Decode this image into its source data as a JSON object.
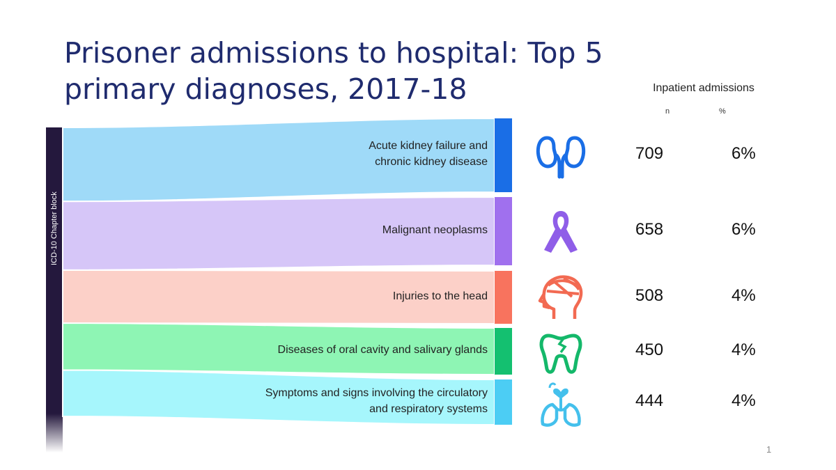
{
  "title": "Prisoner admissions to hospital: Top 5 primary diagnoses, 2017-18",
  "header": {
    "group": "Inpatient admissions",
    "n_label": "n",
    "pct_label": "%"
  },
  "sidebar_label": "ICD-10 Chapter block",
  "page_number": "1",
  "chart_data": {
    "type": "sankey",
    "title": "Prisoner admissions to hospital: Top 5 primary diagnoses, 2017-18",
    "source": "ICD-10 Chapter block",
    "columns": [
      "n",
      "%"
    ],
    "rows": [
      {
        "label": "Acute kidney failure and chronic kidney disease",
        "label_lines": [
          "Acute kidney failure and",
          "chronic kidney disease"
        ],
        "n": 709,
        "n_text": "709",
        "pct_text": "6%",
        "color": "#9fdaf8",
        "bar_color": "#1a6ee6",
        "icon": "kidneys-icon",
        "icon_color": "#1a6ee6"
      },
      {
        "label": "Malignant neoplasms",
        "label_lines": [
          "Malignant neoplasms"
        ],
        "n": 658,
        "n_text": "658",
        "pct_text": "6%",
        "color": "#d6c6f8",
        "bar_color": "#a070ee",
        "icon": "cancer-ribbon-icon",
        "icon_color": "#8f5ee8"
      },
      {
        "label": "Injuries to the head",
        "label_lines": [
          "Injuries to the head"
        ],
        "n": 508,
        "n_text": "508",
        "pct_text": "4%",
        "color": "#fcd0c8",
        "bar_color": "#f8735e",
        "icon": "head-injury-icon",
        "icon_color": "#f26a52"
      },
      {
        "label": "Diseases of oral cavity and salivary glands",
        "label_lines": [
          "Diseases of oral cavity and salivary glands"
        ],
        "n": 450,
        "n_text": "450",
        "pct_text": "4%",
        "color": "#8ef5b4",
        "bar_color": "#14c070",
        "icon": "tooth-icon",
        "icon_color": "#14b86a"
      },
      {
        "label": "Symptoms and signs involving the circulatory and respiratory systems",
        "label_lines": [
          "Symptoms and signs involving the circulatory",
          "and respiratory systems"
        ],
        "n": 444,
        "n_text": "444",
        "pct_text": "4%",
        "color": "#a6f6fc",
        "bar_color": "#4ccdf4",
        "icon": "heart-lungs-icon",
        "icon_color": "#44c0ec"
      }
    ]
  }
}
